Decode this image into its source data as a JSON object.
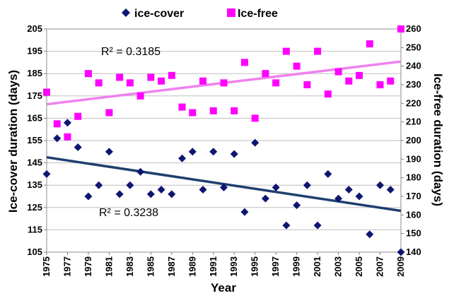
{
  "chart_data": {
    "type": "scatter",
    "xlabel": "Year",
    "ylabel_left": "Ice-cover duration (days)",
    "ylabel_right": "Ice-free duration (days)",
    "x_ticks": [
      "1975",
      "1977",
      "1979",
      "1981",
      "1983",
      "1985",
      "1987",
      "1989",
      "1991",
      "1993",
      "1995",
      "1997",
      "1999",
      "2001",
      "2003",
      "2005",
      "2007",
      "2009"
    ],
    "y_left_ticks": [
      "105",
      "115",
      "125",
      "135",
      "145",
      "155",
      "165",
      "175",
      "185",
      "195",
      "205"
    ],
    "y_right_ticks": [
      "140",
      "150",
      "160",
      "170",
      "180",
      "190",
      "200",
      "210",
      "220",
      "230",
      "240",
      "250",
      "260"
    ],
    "xlim": [
      1975,
      2009
    ],
    "ylim_left": [
      105,
      205
    ],
    "ylim_right": [
      140,
      260
    ],
    "legend_position": "top-center",
    "series": [
      {
        "name": "ice-cover",
        "axis": "left",
        "marker": "diamond",
        "color": "#0d1670",
        "x": [
          1975,
          1976,
          1977,
          1978,
          1979,
          1980,
          1981,
          1982,
          1983,
          1984,
          1985,
          1986,
          1987,
          1988,
          1989,
          1990,
          1991,
          1992,
          1993,
          1994,
          1995,
          1996,
          1997,
          1998,
          1999,
          2000,
          2001,
          2002,
          2003,
          2004,
          2005,
          2006,
          2007,
          2008,
          2009
        ],
        "y": [
          140,
          156,
          163,
          152,
          130,
          135,
          150,
          131,
          135,
          141,
          131,
          133,
          131,
          147,
          150,
          133,
          150,
          134,
          149,
          123,
          154,
          129,
          134,
          117,
          126,
          135,
          117,
          140,
          129,
          133,
          130,
          113,
          135,
          133,
          105
        ]
      },
      {
        "name": "Ice-free",
        "axis": "right",
        "marker": "square",
        "color": "#ff00ff",
        "x": [
          1975,
          1976,
          1977,
          1978,
          1979,
          1980,
          1981,
          1982,
          1983,
          1984,
          1985,
          1986,
          1987,
          1988,
          1989,
          1990,
          1991,
          1992,
          1993,
          1994,
          1995,
          1996,
          1997,
          1998,
          1999,
          2000,
          2001,
          2002,
          2003,
          2004,
          2005,
          2006,
          2007,
          2008,
          2009
        ],
        "y": [
          226,
          209,
          202,
          213,
          236,
          231,
          215,
          234,
          231,
          224,
          234,
          232,
          235,
          218,
          215,
          232,
          216,
          231,
          216,
          242,
          212,
          236,
          231,
          248,
          240,
          230,
          248,
          225,
          237,
          232,
          235,
          252,
          230,
          232,
          260
        ]
      }
    ],
    "trendlines": [
      {
        "series": "ice-cover",
        "axis": "left",
        "color": "#1d3f6e",
        "x": [
          1975,
          2009
        ],
        "y": [
          147.5,
          123.5
        ],
        "label": "R² = 0.3238"
      },
      {
        "series": "Ice-free",
        "axis": "right",
        "color": "#ee82ee",
        "x": [
          1975,
          2009
        ],
        "y": [
          219.5,
          242.5
        ],
        "label": "R² = 0.3185"
      }
    ]
  }
}
